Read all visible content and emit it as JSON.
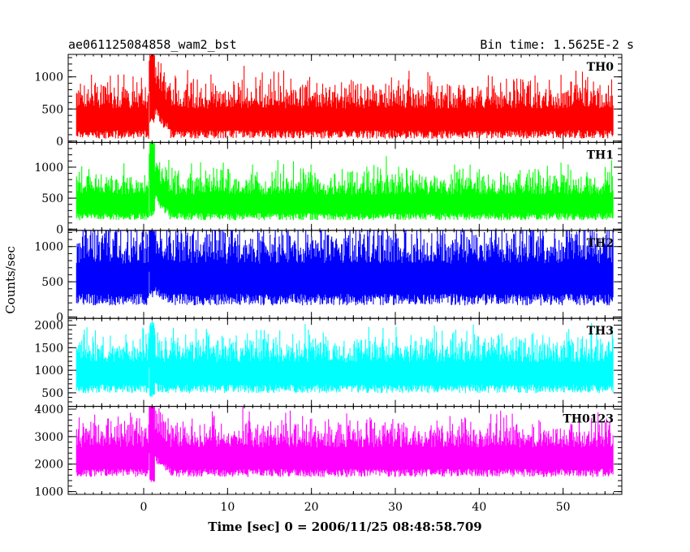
{
  "header": {
    "title": "ae061125084858_wam2_bst",
    "bin_time": "Bin time: 1.5625E-2 s"
  },
  "chart_data": {
    "type": "line",
    "title": "ae061125084858_wam2_bst",
    "xlabel": "Time [sec] 0 = 2006/11/25 08:48:58.709",
    "ylabel": "Counts/sec",
    "xlim": [
      -9,
      57
    ],
    "x_ticks": [
      0,
      10,
      20,
      30,
      40,
      50
    ],
    "x_tick_labels": [
      "0",
      "10",
      "20",
      "30",
      "40",
      "50"
    ],
    "data_range": [
      -8,
      56
    ],
    "panels": [
      {
        "name": "TH0",
        "color": "#ff0000",
        "ylim": [
          -20,
          1350
        ],
        "y_ticks": [
          0,
          500,
          1000
        ],
        "y_tick_labels": [
          "0",
          "500",
          "1000"
        ],
        "baseline": 350,
        "spread": 260,
        "burst": {
          "t": 0.8,
          "peak": 1300,
          "trough": 250,
          "decay": 1.2
        }
      },
      {
        "name": "TH1",
        "color": "#00ff00",
        "ylim": [
          -20,
          1400
        ],
        "y_ticks": [
          0,
          500,
          1000
        ],
        "y_tick_labels": [
          "0",
          "500",
          "1000"
        ],
        "baseline": 420,
        "spread": 230,
        "burst": {
          "t": 0.8,
          "peak": 1350,
          "trough": 200,
          "decay": 1.0
        }
      },
      {
        "name": "TH2",
        "color": "#0000ff",
        "ylim": [
          -20,
          1230
        ],
        "y_ticks": [
          0,
          500,
          1000
        ],
        "y_tick_labels": [
          "0",
          "500",
          "1000"
        ],
        "baseline": 560,
        "spread": 330,
        "burst": {
          "t": 0.8,
          "peak": 1200,
          "trough": 280,
          "decay": 0.8
        }
      },
      {
        "name": "TH3",
        "color": "#00ffff",
        "ylim": [
          200,
          2150
        ],
        "y_ticks": [
          500,
          1000,
          1500,
          2000
        ],
        "y_tick_labels": [
          "500",
          "1000",
          "1500",
          "2000"
        ],
        "baseline": 950,
        "spread": 380,
        "burst": {
          "t": 0.8,
          "peak": 1900,
          "trough": 400,
          "decay": 0.3
        }
      },
      {
        "name": "TH0123",
        "color": "#ff00ff",
        "ylim": [
          900,
          4100
        ],
        "y_ticks": [
          1000,
          2000,
          3000,
          4000
        ],
        "y_tick_labels": [
          "1000",
          "2000",
          "3000",
          "4000"
        ],
        "baseline": 2250,
        "spread": 600,
        "burst": {
          "t": 0.8,
          "peak": 4100,
          "trough": 1350,
          "decay": 1.2
        }
      }
    ]
  }
}
